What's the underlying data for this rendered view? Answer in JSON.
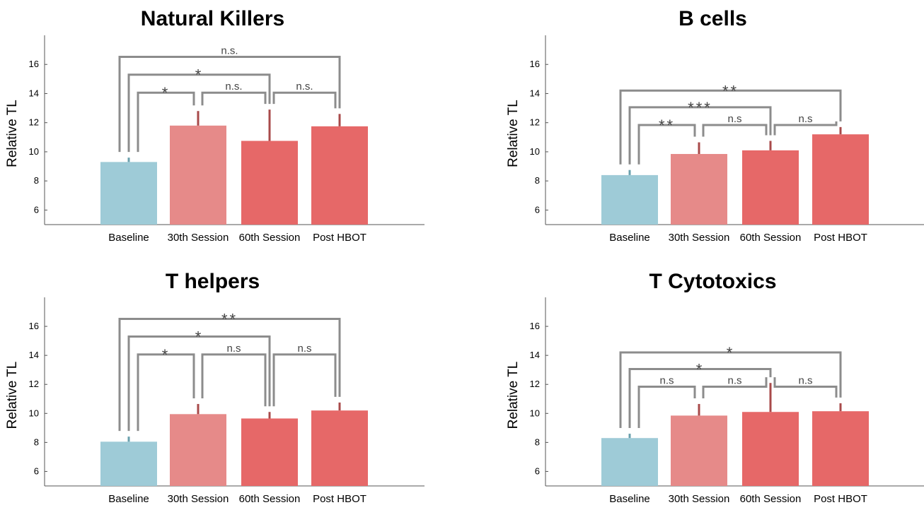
{
  "colors": {
    "baseline": "#9ecbd7",
    "session30": "#e68a89",
    "session60": "#e66868",
    "post": "#e66868",
    "error": "#a84a4a",
    "bracket": "#8c8c8c",
    "axis": "#555555"
  },
  "chart_data": [
    {
      "type": "bar",
      "title": "Natural Killers",
      "ylabel": "Relative TL",
      "categories": [
        "Baseline",
        "30th Session",
        "60th Session",
        "Post HBOT"
      ],
      "values": [
        9.3,
        11.8,
        10.75,
        11.75
      ],
      "errors": [
        0.3,
        1.0,
        2.15,
        0.85
      ],
      "ylim": [
        5,
        18
      ],
      "yticks": [
        6,
        8,
        10,
        12,
        14,
        16
      ],
      "significance": [
        {
          "from": 0,
          "to": 1,
          "label": "*"
        },
        {
          "from": 1,
          "to": 2,
          "label": "n.s."
        },
        {
          "from": 2,
          "to": 3,
          "label": "n.s."
        },
        {
          "from": 0,
          "to": 2,
          "label": "*"
        },
        {
          "from": 0,
          "to": 3,
          "label": "n.s."
        }
      ]
    },
    {
      "type": "bar",
      "title": "B cells",
      "ylabel": "Relative TL",
      "categories": [
        "Baseline",
        "30th Session",
        "60th Session",
        "Post HBOT"
      ],
      "values": [
        8.4,
        9.85,
        10.1,
        11.2
      ],
      "errors": [
        0.35,
        0.8,
        0.65,
        0.5
      ],
      "ylim": [
        5,
        18
      ],
      "yticks": [
        6,
        8,
        10,
        12,
        14,
        16
      ],
      "significance": [
        {
          "from": 0,
          "to": 1,
          "label": "**"
        },
        {
          "from": 1,
          "to": 2,
          "label": "n.s"
        },
        {
          "from": 2,
          "to": 3,
          "label": "n.s"
        },
        {
          "from": 0,
          "to": 2,
          "label": "***"
        },
        {
          "from": 0,
          "to": 3,
          "label": "**"
        }
      ]
    },
    {
      "type": "bar",
      "title": "T helpers",
      "ylabel": "Relative TL",
      "categories": [
        "Baseline",
        "30th Session",
        "60th Session",
        "Post HBOT"
      ],
      "values": [
        8.05,
        9.95,
        9.65,
        10.2
      ],
      "errors": [
        0.35,
        0.7,
        0.45,
        0.55
      ],
      "ylim": [
        5,
        18
      ],
      "yticks": [
        6,
        8,
        10,
        12,
        14,
        16
      ],
      "significance": [
        {
          "from": 0,
          "to": 1,
          "label": "*"
        },
        {
          "from": 1,
          "to": 2,
          "label": "n.s"
        },
        {
          "from": 2,
          "to": 3,
          "label": "n.s"
        },
        {
          "from": 0,
          "to": 2,
          "label": "*"
        },
        {
          "from": 0,
          "to": 3,
          "label": "**"
        }
      ]
    },
    {
      "type": "bar",
      "title": "T Cytotoxics",
      "ylabel": "Relative TL",
      "categories": [
        "Baseline",
        "30th Session",
        "60th Session",
        "Post HBOT"
      ],
      "values": [
        8.3,
        9.85,
        10.1,
        10.15
      ],
      "errors": [
        0.3,
        0.8,
        2.0,
        0.55
      ],
      "ylim": [
        5,
        18
      ],
      "yticks": [
        6,
        8,
        10,
        12,
        14,
        16
      ],
      "significance": [
        {
          "from": 0,
          "to": 1,
          "label": "n.s"
        },
        {
          "from": 1,
          "to": 2,
          "label": "n.s"
        },
        {
          "from": 2,
          "to": 3,
          "label": "n.s"
        },
        {
          "from": 0,
          "to": 2,
          "label": "*"
        },
        {
          "from": 0,
          "to": 3,
          "label": "*"
        }
      ]
    }
  ]
}
